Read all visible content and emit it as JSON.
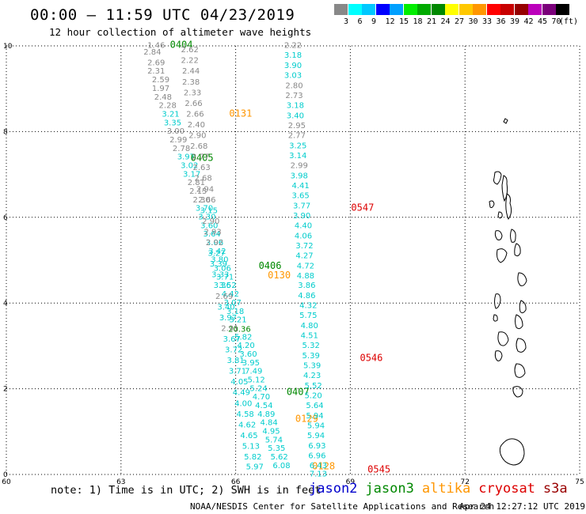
{
  "title": "00:00 – 11:59 UTC 04/23/2019",
  "subtitle": "12 hour collection of altimeter wave heights",
  "colorbar": {
    "colors": [
      "#888888",
      "#00ffff",
      "#00c8ff",
      "#0000ff",
      "#00a0ff",
      "#00ee00",
      "#00aa00",
      "#008800",
      "#ffff00",
      "#ffc800",
      "#ff9600",
      "#ff0000",
      "#c80000",
      "#960000",
      "#bb00bb",
      "#7a007a",
      "#000000"
    ],
    "labels": [
      "3",
      "6",
      "9",
      "12",
      "15",
      "18",
      "21",
      "24",
      "27",
      "30",
      "33",
      "36",
      "39",
      "42",
      "45",
      "70",
      "(ft)"
    ]
  },
  "axes": {
    "x_ticks": [
      "60",
      "63",
      "66",
      "69",
      "72",
      "75"
    ],
    "y_ticks": [
      "0",
      "2",
      "4",
      "6",
      "8",
      "10"
    ]
  },
  "map_features": {
    "land": "island group on the east side"
  },
  "chart_data": {
    "type": "scatter",
    "xlim": [
      60,
      75
    ],
    "ylim": [
      0,
      10
    ],
    "tracks": [
      {
        "satellite": "jason3",
        "pass_labels": [
          {
            "text": "0404",
            "x": 64.58,
            "y": 9.95
          },
          {
            "text": "0405",
            "x": 65.12,
            "y": 7.32
          },
          {
            "text": "0406",
            "x": 66.9,
            "y": 4.8
          },
          {
            "text": "0407",
            "x": 67.63,
            "y": 1.85
          }
        ],
        "points": [
          {
            "x": 63.92,
            "y": 9.95,
            "v": "1.46",
            "c": "#888888"
          },
          {
            "x": 63.82,
            "y": 9.8,
            "v": "2.84",
            "c": "#888888"
          },
          {
            "x": 63.92,
            "y": 9.55,
            "v": "2.69",
            "c": "#888888"
          },
          {
            "x": 63.92,
            "y": 9.35,
            "v": "2.31",
            "c": "#888888"
          },
          {
            "x": 64.04,
            "y": 9.15,
            "v": "2.59",
            "c": "#888888"
          },
          {
            "x": 64.04,
            "y": 8.95,
            "v": "1.97",
            "c": "#888888"
          },
          {
            "x": 64.1,
            "y": 8.75,
            "v": "2.48",
            "c": "#888888"
          },
          {
            "x": 64.22,
            "y": 8.55,
            "v": "2.28",
            "c": "#888888"
          },
          {
            "x": 64.3,
            "y": 8.35,
            "v": "3.21",
            "c": "#00cccc"
          },
          {
            "x": 64.35,
            "y": 8.15,
            "v": "3.35",
            "c": "#00cccc"
          },
          {
            "x": 64.43,
            "y": 7.95,
            "v": "3.00",
            "c": "#888888"
          },
          {
            "x": 64.5,
            "y": 7.75,
            "v": "2.99",
            "c": "#888888"
          },
          {
            "x": 64.58,
            "y": 7.55,
            "v": "2.78",
            "c": "#888888"
          },
          {
            "x": 64.7,
            "y": 7.35,
            "v": "3.97",
            "c": "#00cccc"
          },
          {
            "x": 64.79,
            "y": 7.15,
            "v": "3.02",
            "c": "#00cccc"
          },
          {
            "x": 64.85,
            "y": 6.95,
            "v": "3.17",
            "c": "#00cccc"
          },
          {
            "x": 64.97,
            "y": 6.75,
            "v": "2.81",
            "c": "#888888"
          },
          {
            "x": 65.02,
            "y": 6.55,
            "v": "2.15",
            "c": "#888888"
          },
          {
            "x": 65.11,
            "y": 6.35,
            "v": "2.30",
            "c": "#888888"
          },
          {
            "x": 65.18,
            "y": 6.15,
            "v": "3.70",
            "c": "#00cccc"
          },
          {
            "x": 65.25,
            "y": 5.95,
            "v": "3.30",
            "c": "#00cccc"
          },
          {
            "x": 65.31,
            "y": 5.75,
            "v": "3.60",
            "c": "#00cccc"
          },
          {
            "x": 65.38,
            "y": 5.55,
            "v": "3.64",
            "c": "#00cccc"
          },
          {
            "x": 65.45,
            "y": 5.35,
            "v": "3.06",
            "c": "#00cccc"
          },
          {
            "x": 65.52,
            "y": 5.15,
            "v": "3.42",
            "c": "#00cccc"
          },
          {
            "x": 65.58,
            "y": 4.95,
            "v": "3.80",
            "c": "#00cccc"
          },
          {
            "x": 65.65,
            "y": 4.75,
            "v": "3.06",
            "c": "#00cccc"
          },
          {
            "x": 65.72,
            "y": 4.55,
            "v": "3.71",
            "c": "#00cccc"
          },
          {
            "x": 65.79,
            "y": 4.35,
            "v": "3.52",
            "c": "#00cccc"
          },
          {
            "x": 65.86,
            "y": 4.15,
            "v": "4.42",
            "c": "#00cccc"
          },
          {
            "x": 65.92,
            "y": 3.95,
            "v": "3.07",
            "c": "#00cccc"
          },
          {
            "x": 65.99,
            "y": 3.75,
            "v": "3.18",
            "c": "#00cccc"
          },
          {
            "x": 66.06,
            "y": 3.55,
            "v": "3.21",
            "c": "#00cccc"
          },
          {
            "x": 66.1,
            "y": 3.33,
            "v": "20.36",
            "c": "#008800"
          },
          {
            "x": 66.2,
            "y": 3.15,
            "v": "5.82",
            "c": "#00cccc"
          },
          {
            "x": 66.27,
            "y": 2.95,
            "v": "4.20",
            "c": "#00cccc"
          },
          {
            "x": 66.33,
            "y": 2.75,
            "v": "3.60",
            "c": "#00cccc"
          },
          {
            "x": 66.4,
            "y": 2.55,
            "v": "3.95",
            "c": "#00cccc"
          },
          {
            "x": 66.47,
            "y": 2.35,
            "v": "7.49",
            "c": "#00cccc"
          },
          {
            "x": 66.54,
            "y": 2.15,
            "v": "5.12",
            "c": "#00cccc"
          },
          {
            "x": 66.6,
            "y": 1.95,
            "v": "5.24",
            "c": "#00cccc"
          },
          {
            "x": 66.67,
            "y": 1.75,
            "v": "4.70",
            "c": "#00cccc"
          },
          {
            "x": 66.74,
            "y": 1.55,
            "v": "4.54",
            "c": "#00cccc"
          },
          {
            "x": 66.8,
            "y": 1.35,
            "v": "4.89",
            "c": "#00cccc"
          },
          {
            "x": 66.87,
            "y": 1.15,
            "v": "4.84",
            "c": "#00cccc"
          },
          {
            "x": 66.93,
            "y": 0.95,
            "v": "4.95",
            "c": "#00cccc"
          },
          {
            "x": 67.0,
            "y": 0.75,
            "v": "5.74",
            "c": "#00cccc"
          },
          {
            "x": 67.07,
            "y": 0.55,
            "v": "5.35",
            "c": "#00cccc"
          },
          {
            "x": 67.14,
            "y": 0.35,
            "v": "5.62",
            "c": "#00cccc"
          },
          {
            "x": 67.2,
            "y": 0.15,
            "v": "6.08",
            "c": "#00cccc"
          }
        ]
      },
      {
        "satellite": "altika",
        "pass_labels": [
          {
            "text": "0131",
            "x": 66.13,
            "y": 8.35
          },
          {
            "text": "0130",
            "x": 67.14,
            "y": 4.58
          },
          {
            "text": "0129",
            "x": 67.86,
            "y": 1.23
          },
          {
            "text": "0128",
            "x": 68.3,
            "y": 0.12
          }
        ],
        "points": [
          {
            "x": 64.8,
            "y": 9.85,
            "v": "2.62",
            "c": "#888888"
          },
          {
            "x": 64.8,
            "y": 9.6,
            "v": "2.22",
            "c": "#888888"
          },
          {
            "x": 64.83,
            "y": 9.35,
            "v": "2.44",
            "c": "#888888"
          },
          {
            "x": 64.83,
            "y": 9.1,
            "v": "2.38",
            "c": "#888888"
          },
          {
            "x": 64.87,
            "y": 8.85,
            "v": "2.33",
            "c": "#888888"
          },
          {
            "x": 64.9,
            "y": 8.6,
            "v": "2.66",
            "c": "#888888"
          },
          {
            "x": 64.94,
            "y": 8.35,
            "v": "2.66",
            "c": "#888888"
          },
          {
            "x": 64.97,
            "y": 8.1,
            "v": "2.40",
            "c": "#888888"
          },
          {
            "x": 65.0,
            "y": 7.85,
            "v": "2.90",
            "c": "#888888"
          },
          {
            "x": 65.04,
            "y": 7.6,
            "v": "2.68",
            "c": "#888888"
          },
          {
            "x": 65.08,
            "y": 7.35,
            "v": "2.77",
            "c": "#888888"
          },
          {
            "x": 65.11,
            "y": 7.1,
            "v": "2.63",
            "c": "#888888"
          },
          {
            "x": 65.15,
            "y": 6.85,
            "v": "2.68",
            "c": "#888888"
          },
          {
            "x": 65.2,
            "y": 6.6,
            "v": "2.94",
            "c": "#888888"
          },
          {
            "x": 65.25,
            "y": 6.35,
            "v": "2.66",
            "c": "#888888"
          },
          {
            "x": 65.3,
            "y": 6.1,
            "v": "3.15",
            "c": "#00cccc"
          },
          {
            "x": 65.35,
            "y": 5.85,
            "v": "2.90",
            "c": "#888888"
          },
          {
            "x": 65.4,
            "y": 5.6,
            "v": "2.93",
            "c": "#888888"
          },
          {
            "x": 65.45,
            "y": 5.35,
            "v": "2.92",
            "c": "#888888"
          },
          {
            "x": 65.5,
            "y": 5.1,
            "v": "3.27",
            "c": "#00cccc"
          },
          {
            "x": 65.55,
            "y": 4.85,
            "v": "3.39",
            "c": "#00cccc"
          },
          {
            "x": 65.6,
            "y": 4.6,
            "v": "3.33",
            "c": "#00cccc"
          },
          {
            "x": 65.65,
            "y": 4.35,
            "v": "3.36",
            "c": "#00cccc"
          },
          {
            "x": 65.7,
            "y": 4.1,
            "v": "2.69",
            "c": "#888888"
          },
          {
            "x": 65.75,
            "y": 3.85,
            "v": "3.40",
            "c": "#00cccc"
          },
          {
            "x": 65.8,
            "y": 3.6,
            "v": "3.97",
            "c": "#00cccc"
          },
          {
            "x": 65.85,
            "y": 3.35,
            "v": "2.91",
            "c": "#888888"
          },
          {
            "x": 65.9,
            "y": 3.1,
            "v": "3.67",
            "c": "#00cccc"
          },
          {
            "x": 65.95,
            "y": 2.85,
            "v": "3.72",
            "c": "#00cccc"
          },
          {
            "x": 66.0,
            "y": 2.6,
            "v": "3.81",
            "c": "#00cccc"
          },
          {
            "x": 66.05,
            "y": 2.35,
            "v": "3.71",
            "c": "#00cccc"
          },
          {
            "x": 66.1,
            "y": 2.1,
            "v": "4.05",
            "c": "#00cccc"
          },
          {
            "x": 66.15,
            "y": 1.85,
            "v": "4.49",
            "c": "#00cccc"
          },
          {
            "x": 66.2,
            "y": 1.6,
            "v": "4.00",
            "c": "#00cccc"
          },
          {
            "x": 66.25,
            "y": 1.35,
            "v": "4.58",
            "c": "#00cccc"
          },
          {
            "x": 66.3,
            "y": 1.1,
            "v": "4.62",
            "c": "#00cccc"
          },
          {
            "x": 66.35,
            "y": 0.85,
            "v": "4.65",
            "c": "#00cccc"
          },
          {
            "x": 66.4,
            "y": 0.6,
            "v": "5.13",
            "c": "#00cccc"
          },
          {
            "x": 66.45,
            "y": 0.35,
            "v": "5.82",
            "c": "#00cccc"
          },
          {
            "x": 66.5,
            "y": 0.12,
            "v": "5.97",
            "c": "#00cccc"
          }
        ]
      },
      {
        "satellite": "cryosat",
        "pass_labels": [
          {
            "text": "0547",
            "x": 69.32,
            "y": 6.15
          },
          {
            "text": "0546",
            "x": 69.55,
            "y": 2.65
          },
          {
            "text": "0545",
            "x": 69.75,
            "y": 0.05
          }
        ],
        "points": [
          {
            "x": 67.5,
            "y": 9.95,
            "v": "2.22",
            "c": "#888888"
          },
          {
            "x": 67.5,
            "y": 9.72,
            "v": "3.18",
            "c": "#00cccc"
          },
          {
            "x": 67.5,
            "y": 9.48,
            "v": "3.90",
            "c": "#00cccc"
          },
          {
            "x": 67.5,
            "y": 9.25,
            "v": "3.03",
            "c": "#00cccc"
          },
          {
            "x": 67.53,
            "y": 9.01,
            "v": "2.80",
            "c": "#888888"
          },
          {
            "x": 67.53,
            "y": 8.78,
            "v": "2.73",
            "c": "#888888"
          },
          {
            "x": 67.56,
            "y": 8.55,
            "v": "3.18",
            "c": "#00cccc"
          },
          {
            "x": 67.56,
            "y": 8.31,
            "v": "3.40",
            "c": "#00cccc"
          },
          {
            "x": 67.6,
            "y": 8.08,
            "v": "2.95",
            "c": "#888888"
          },
          {
            "x": 67.6,
            "y": 7.85,
            "v": "2.77",
            "c": "#888888"
          },
          {
            "x": 67.63,
            "y": 7.61,
            "v": "3.25",
            "c": "#00cccc"
          },
          {
            "x": 67.63,
            "y": 7.38,
            "v": "3.14",
            "c": "#00cccc"
          },
          {
            "x": 67.66,
            "y": 7.15,
            "v": "2.99",
            "c": "#888888"
          },
          {
            "x": 67.66,
            "y": 6.91,
            "v": "3.98",
            "c": "#00cccc"
          },
          {
            "x": 67.7,
            "y": 6.68,
            "v": "4.41",
            "c": "#00cccc"
          },
          {
            "x": 67.7,
            "y": 6.45,
            "v": "3.65",
            "c": "#00cccc"
          },
          {
            "x": 67.73,
            "y": 6.21,
            "v": "3.77",
            "c": "#00cccc"
          },
          {
            "x": 67.73,
            "y": 5.98,
            "v": "3.90",
            "c": "#00cccc"
          },
          {
            "x": 67.77,
            "y": 5.75,
            "v": "4.40",
            "c": "#00cccc"
          },
          {
            "x": 67.77,
            "y": 5.51,
            "v": "4.06",
            "c": "#00cccc"
          },
          {
            "x": 67.8,
            "y": 5.28,
            "v": "3.72",
            "c": "#00cccc"
          },
          {
            "x": 67.8,
            "y": 5.05,
            "v": "4.27",
            "c": "#00cccc"
          },
          {
            "x": 67.83,
            "y": 4.81,
            "v": "4.72",
            "c": "#00cccc"
          },
          {
            "x": 67.83,
            "y": 4.58,
            "v": "4.88",
            "c": "#00cccc"
          },
          {
            "x": 67.86,
            "y": 4.35,
            "v": "3.86",
            "c": "#00cccc"
          },
          {
            "x": 67.86,
            "y": 4.11,
            "v": "4.86",
            "c": "#00cccc"
          },
          {
            "x": 67.9,
            "y": 3.88,
            "v": "4.32",
            "c": "#00cccc"
          },
          {
            "x": 67.9,
            "y": 3.65,
            "v": "5.75",
            "c": "#00cccc"
          },
          {
            "x": 67.93,
            "y": 3.41,
            "v": "4.80",
            "c": "#00cccc"
          },
          {
            "x": 67.93,
            "y": 3.18,
            "v": "4.51",
            "c": "#00cccc"
          },
          {
            "x": 67.97,
            "y": 2.95,
            "v": "5.32",
            "c": "#00cccc"
          },
          {
            "x": 67.97,
            "y": 2.71,
            "v": "5.39",
            "c": "#00cccc"
          },
          {
            "x": 68.0,
            "y": 2.48,
            "v": "5.39",
            "c": "#00cccc"
          },
          {
            "x": 68.0,
            "y": 2.25,
            "v": "4.23",
            "c": "#00cccc"
          },
          {
            "x": 68.03,
            "y": 2.01,
            "v": "5.52",
            "c": "#00cccc"
          },
          {
            "x": 68.03,
            "y": 1.78,
            "v": "5.20",
            "c": "#00cccc"
          },
          {
            "x": 68.07,
            "y": 1.55,
            "v": "5.64",
            "c": "#00cccc"
          },
          {
            "x": 68.07,
            "y": 1.31,
            "v": "5.94",
            "c": "#00cccc"
          },
          {
            "x": 68.1,
            "y": 1.08,
            "v": "5.94",
            "c": "#00cccc"
          },
          {
            "x": 68.1,
            "y": 0.85,
            "v": "5.94",
            "c": "#00cccc"
          },
          {
            "x": 68.13,
            "y": 0.61,
            "v": "6.93",
            "c": "#00cccc"
          },
          {
            "x": 68.13,
            "y": 0.38,
            "v": "6.96",
            "c": "#00cccc"
          },
          {
            "x": 68.16,
            "y": 0.15,
            "v": "6.43",
            "c": "#00cccc"
          },
          {
            "x": 68.16,
            "y": -0.05,
            "v": "7.13",
            "c": "#00cccc"
          }
        ]
      }
    ]
  },
  "note": "note: 1) Time is in UTC; 2) SWH is in feet",
  "legend": [
    {
      "name": "jason2",
      "color": "#0000cc"
    },
    {
      "name": "jason3",
      "color": "#008800"
    },
    {
      "name": "altika",
      "color": "#ff9600"
    },
    {
      "name": "cryosat",
      "color": "#dd0000"
    },
    {
      "name": "s3a",
      "color": "#990000"
    }
  ],
  "credit": "NOAA/NESDIS Center for Satellite Applications and Research",
  "timestamp": "Apr 24 12:27:12 UTC 2019"
}
